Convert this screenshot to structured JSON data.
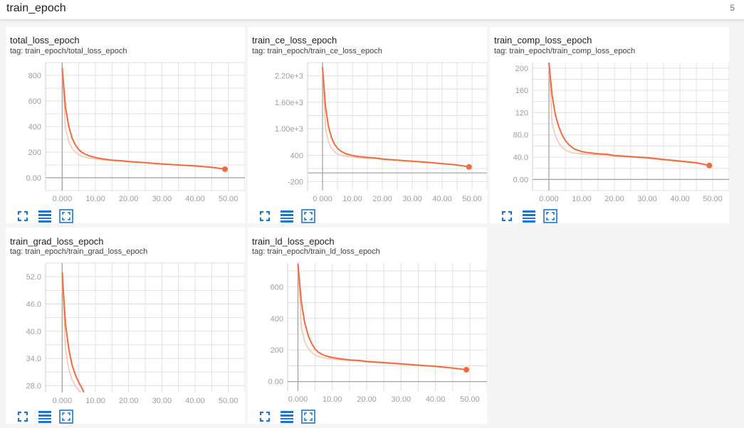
{
  "header": {
    "title": "train_epoch",
    "count": "5"
  },
  "colors": {
    "line": "#f26b3a",
    "smoothed_raw": "#f7c4b0",
    "axis": "#9e9e9e",
    "grid": "#e0e0e0",
    "icon": "#1976d2"
  },
  "icons": [
    "fit-domain-icon",
    "toggle-log-scale-icon",
    "expand-chart-icon"
  ],
  "cards": [
    {
      "title": "total_loss_epoch",
      "tag": "tag: train_epoch/total_loss_epoch"
    },
    {
      "title": "train_ce_loss_epoch",
      "tag": "tag: train_epoch/train_ce_loss_epoch"
    },
    {
      "title": "train_comp_loss_epoch",
      "tag": "tag: train_epoch/train_comp_loss_epoch"
    },
    {
      "title": "train_grad_loss_epoch",
      "tag": "tag: train_epoch/train_grad_loss_epoch"
    },
    {
      "title": "train_ld_loss_epoch",
      "tag": "tag: train_epoch/train_ld_loss_epoch"
    }
  ],
  "chart_data": [
    {
      "type": "line",
      "title": "total_loss_epoch",
      "xlim": [
        -5,
        55
      ],
      "ylim": [
        -100,
        900
      ],
      "xticks": [
        0,
        10,
        20,
        30,
        40,
        50
      ],
      "xtick_labels": [
        "0.000",
        "10.00",
        "20.00",
        "30.00",
        "40.00",
        "50.00"
      ],
      "yticks": [
        0,
        200,
        400,
        600,
        800
      ],
      "ytick_labels": [
        "0.00",
        "200",
        "400",
        "600",
        "800"
      ],
      "series": [
        {
          "x": [
            0,
            1,
            2,
            3,
            4,
            5,
            6,
            7,
            8,
            10,
            12,
            15,
            18,
            20,
            25,
            30,
            35,
            40,
            45,
            49
          ],
          "y": [
            860,
            550,
            400,
            310,
            255,
            220,
            198,
            183,
            172,
            158,
            148,
            138,
            133,
            126,
            118,
            108,
            100,
            92,
            82,
            67
          ]
        },
        {
          "x": [
            0,
            1,
            2,
            3,
            4,
            5,
            6,
            7,
            8,
            10,
            12,
            15,
            18,
            20,
            25,
            30,
            35,
            40,
            45,
            49
          ],
          "y": [
            860,
            380,
            280,
            230,
            200,
            180,
            168,
            160,
            153,
            146,
            140,
            134,
            130,
            124,
            116,
            107,
            99,
            91,
            81,
            68
          ]
        }
      ]
    },
    {
      "type": "line",
      "title": "train_ce_loss_epoch",
      "xlim": [
        -5,
        55
      ],
      "ylim": [
        -400,
        2500
      ],
      "xticks": [
        0,
        10,
        20,
        30,
        40,
        50
      ],
      "xtick_labels": [
        "0.000",
        "10.00",
        "20.00",
        "30.00",
        "40.00",
        "50.00"
      ],
      "yticks": [
        -200,
        400,
        1000,
        1600,
        2200
      ],
      "ytick_labels": [
        "-200",
        "400",
        "1.00e+3",
        "1.60e+3",
        "2.20e+3"
      ],
      "series": [
        {
          "x": [
            0,
            1,
            2,
            3,
            4,
            5,
            6,
            7,
            8,
            10,
            12,
            15,
            18,
            20,
            25,
            30,
            35,
            40,
            45,
            49
          ],
          "y": [
            2400,
            1500,
            1050,
            800,
            650,
            560,
            500,
            460,
            430,
            395,
            370,
            350,
            335,
            315,
            290,
            265,
            240,
            210,
            180,
            135
          ]
        },
        {
          "x": [
            0,
            1,
            2,
            3,
            4,
            5,
            6,
            7,
            8,
            10,
            12,
            15,
            18,
            20,
            25,
            30,
            35,
            40,
            45,
            49
          ],
          "y": [
            2400,
            1000,
            700,
            560,
            480,
            430,
            400,
            385,
            375,
            360,
            345,
            330,
            320,
            305,
            282,
            258,
            233,
            205,
            175,
            138
          ]
        }
      ]
    },
    {
      "type": "line",
      "title": "train_comp_loss_epoch",
      "xlim": [
        -5,
        55
      ],
      "ylim": [
        -20,
        210
      ],
      "xticks": [
        0,
        10,
        20,
        30,
        40,
        50
      ],
      "xtick_labels": [
        "0.000",
        "10.00",
        "20.00",
        "30.00",
        "40.00",
        "50.00"
      ],
      "yticks": [
        0,
        40,
        80,
        120,
        160,
        200
      ],
      "ytick_labels": [
        "0.00",
        "40.0",
        "80.0",
        "120",
        "160",
        "200"
      ],
      "series": [
        {
          "x": [
            0,
            1,
            2,
            3,
            4,
            5,
            6,
            7,
            8,
            10,
            12,
            15,
            18,
            20,
            25,
            30,
            35,
            40,
            45,
            49
          ],
          "y": [
            210,
            150,
            115,
            95,
            80,
            70,
            63,
            58,
            54,
            50,
            48,
            46,
            45,
            43,
            41,
            39,
            36,
            33,
            30,
            25
          ]
        },
        {
          "x": [
            0,
            1,
            2,
            3,
            4,
            5,
            6,
            7,
            8,
            10,
            12,
            15,
            18,
            20,
            25,
            30,
            35,
            40,
            45,
            49
          ],
          "y": [
            210,
            100,
            78,
            66,
            58,
            53,
            50,
            48,
            47,
            46,
            45,
            44,
            43,
            42,
            40,
            38,
            35,
            32,
            29,
            26
          ]
        }
      ]
    },
    {
      "type": "line",
      "title": "train_grad_loss_epoch",
      "xlim": [
        -5,
        55
      ],
      "ylim": [
        26.5,
        55
      ],
      "xticks": [
        0,
        10,
        20,
        30,
        40,
        50
      ],
      "xtick_labels": [
        "0.000",
        "10.00",
        "20.00",
        "30.00",
        "40.00",
        "50.00"
      ],
      "yticks": [
        28,
        34,
        40,
        46,
        52
      ],
      "ytick_labels": [
        "28.0",
        "34.0",
        "40.0",
        "46.0",
        "52.0"
      ],
      "series": [
        {
          "x": [
            0,
            1,
            2,
            3,
            4,
            5,
            6,
            6.5
          ],
          "y": [
            53,
            41.5,
            36,
            32.5,
            30.3,
            28.7,
            27.4,
            26.5
          ]
        },
        {
          "x": [
            0,
            1,
            2,
            3,
            4,
            5,
            5.6
          ],
          "y": [
            53,
            36,
            31.5,
            29.3,
            27.9,
            26.9,
            26.5
          ]
        }
      ]
    },
    {
      "type": "line",
      "title": "train_ld_loss_epoch",
      "xlim": [
        -3,
        55
      ],
      "ylim": [
        -60,
        750
      ],
      "xticks": [
        0,
        10,
        20,
        30,
        40,
        50
      ],
      "xtick_labels": [
        "0.000",
        "10.00",
        "20.00",
        "30.00",
        "40.00",
        "50.00"
      ],
      "yticks": [
        0,
        200,
        400,
        600
      ],
      "ytick_labels": [
        "0.00",
        "200",
        "400",
        "600"
      ],
      "series": [
        {
          "x": [
            0,
            1,
            2,
            3,
            4,
            5,
            6,
            7,
            8,
            10,
            12,
            15,
            18,
            20,
            25,
            30,
            35,
            40,
            45,
            49
          ],
          "y": [
            745,
            500,
            370,
            290,
            240,
            205,
            185,
            172,
            163,
            152,
            145,
            137,
            133,
            127,
            120,
            112,
            104,
            96,
            86,
            75
          ]
        },
        {
          "x": [
            0,
            1,
            2,
            3,
            4,
            5,
            6,
            7,
            8,
            10,
            12,
            15,
            18,
            20,
            25,
            30,
            35,
            40,
            45,
            49
          ],
          "y": [
            745,
            340,
            250,
            210,
            185,
            168,
            158,
            152,
            148,
            142,
            138,
            133,
            129,
            124,
            117,
            110,
            102,
            94,
            84,
            76
          ]
        }
      ]
    }
  ]
}
